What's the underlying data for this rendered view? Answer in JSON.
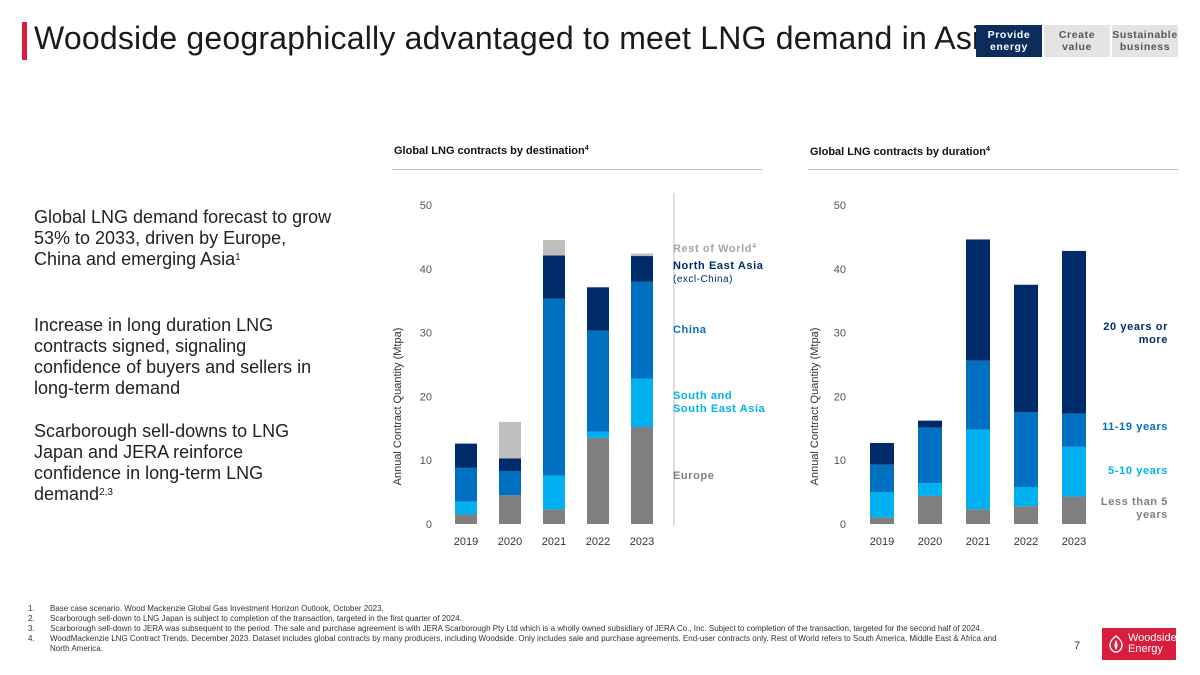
{
  "header": {
    "title": "Woodside geographically advantaged to meet LNG demand in Asia",
    "nav": [
      {
        "line1": "Provide",
        "line2": "energy"
      },
      {
        "line1": "Create",
        "line2": "value"
      },
      {
        "line1": "Sustainable",
        "line2": "business"
      }
    ]
  },
  "key_points": [
    {
      "text": "Global LNG demand forecast to grow 53% to 2033, driven by Europe, China and emerging Asia",
      "sup": "1"
    },
    {
      "text": "Increase in long duration LNG contracts signed, signaling confidence of buyers and sellers in long-term demand",
      "sup": ""
    },
    {
      "text": "Scarborough sell-downs to LNG Japan and JERA reinforce confidence in long-term LNG demand",
      "sup": "2,3"
    }
  ],
  "footnotes": [
    {
      "num": "1.",
      "text": "Base case scenario. Wood Mackenzie Global Gas Investment Horizon Outlook, October 2023."
    },
    {
      "num": "2.",
      "text": "Scarborough sell-down to LNG Japan is subject to completion of the transaction, targeted in the first quarter of 2024."
    },
    {
      "num": "3.",
      "text": "Scarborough sell-down to JERA was subsequent to the period. The sale and purchase agreement is with JERA Scarborough Pty Ltd which is a wholly owned subsidiary of JERA Co., Inc. Subject to completion of the transaction, targeted for the second half of 2024."
    },
    {
      "num": "4.",
      "text": "WoodMackenzie LNG Contract Trends, December 2023. Dataset includes global contracts by many producers, including Woodside. Only includes sale and purchase agreements. End-user contracts only. Rest of World refers to South America, Middle East & Africa and North America."
    }
  ],
  "page_number": "7",
  "logo": {
    "line1": "Woodside",
    "line2": "Energy"
  },
  "colors": {
    "accent": "#d81e3c",
    "navy": "#0a2d5e",
    "grey": "#7f7f7f",
    "light_grey": "#bfbfbf",
    "cyan": "#00b0f0",
    "blue": "#0070c0",
    "dark_navy": "#002b6b"
  },
  "chart_data": [
    {
      "type": "bar",
      "stacked": true,
      "title": "Global LNG contracts by destination",
      "title_sup": "4",
      "ylabel": "Annual Contract Quantity (Mtpa)",
      "ylim": [
        0,
        50
      ],
      "yticks": [
        0,
        10,
        20,
        30,
        40,
        50
      ],
      "categories": [
        "2019",
        "2020",
        "2021",
        "2022",
        "2023"
      ],
      "series": [
        {
          "name": "Europe",
          "color": "#7f7f7f",
          "values": [
            1.5,
            4.5,
            2.3,
            13.5,
            15.2
          ]
        },
        {
          "name": "South and South East Asia",
          "color": "#00b0f0",
          "values": [
            2.0,
            0,
            5.3,
            1.0,
            7.6
          ]
        },
        {
          "name": "China",
          "color": "#0070c0",
          "values": [
            5.3,
            3.8,
            27.7,
            15.8,
            15.2
          ]
        },
        {
          "name": "North East Asia (excl-China)",
          "color": "#002b6b",
          "values": [
            3.8,
            2.0,
            6.8,
            6.8,
            4.0
          ]
        },
        {
          "name": "Rest of World",
          "color": "#bfbfbf",
          "values": [
            0,
            5.7,
            2.4,
            0,
            0.4
          ]
        }
      ],
      "legend": [
        {
          "lines": [
            "Rest of World"
          ],
          "sup": "4",
          "color": "#a6a6a6"
        },
        {
          "lines": [
            "North East Asia"
          ],
          "sub": "(excl-China)",
          "color": "#002b6b"
        },
        {
          "lines": [
            "China"
          ],
          "color": "#0070c0"
        },
        {
          "lines": [
            "South and",
            "South East Asia"
          ],
          "color": "#00b0f0"
        },
        {
          "lines": [
            "Europe"
          ],
          "color": "#7f7f7f"
        }
      ]
    },
    {
      "type": "bar",
      "stacked": true,
      "title": "Global LNG contracts by duration",
      "title_sup": "4",
      "ylabel": "Annual Contract Quantity (Mtpa)",
      "ylim": [
        0,
        50
      ],
      "yticks": [
        0,
        10,
        20,
        30,
        40,
        50
      ],
      "categories": [
        "2019",
        "2020",
        "2021",
        "2022",
        "2023"
      ],
      "series": [
        {
          "name": "Less than 5 years",
          "color": "#7f7f7f",
          "values": [
            1.0,
            4.4,
            2.3,
            2.8,
            4.3
          ]
        },
        {
          "name": "5-10 years",
          "color": "#00b0f0",
          "values": [
            4.0,
            2.0,
            12.5,
            3.0,
            7.8
          ]
        },
        {
          "name": "11-19 years",
          "color": "#0070c0",
          "values": [
            4.3,
            8.7,
            10.8,
            11.7,
            5.2
          ]
        },
        {
          "name": "20 years or more",
          "color": "#002b6b",
          "values": [
            3.4,
            1.1,
            19.0,
            20.0,
            25.5
          ]
        }
      ],
      "legend": [
        {
          "lines": [
            "20 years or",
            "more"
          ],
          "color": "#002b6b"
        },
        {
          "lines": [
            "11-19 years"
          ],
          "color": "#0070c0"
        },
        {
          "lines": [
            "5-10 years"
          ],
          "color": "#00b0f0"
        },
        {
          "lines": [
            "Less than 5",
            "years"
          ],
          "color": "#7f7f7f"
        }
      ]
    }
  ]
}
